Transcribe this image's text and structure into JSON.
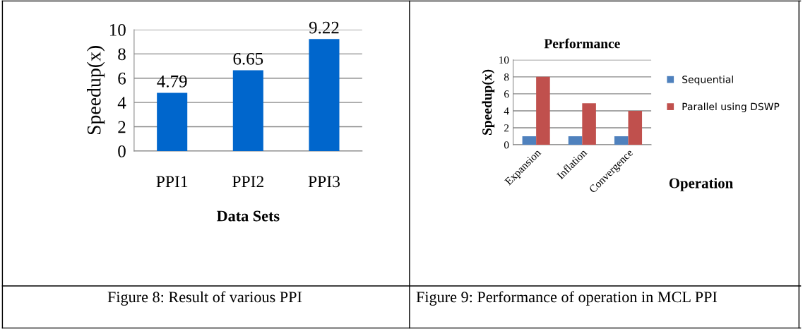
{
  "chart_data": [
    {
      "type": "bar",
      "categories": [
        "PPI1",
        "PPI2",
        "PPI3"
      ],
      "values": [
        4.79,
        6.65,
        9.22
      ],
      "color": "#0066cc",
      "data_labels": true,
      "ylabel": "Speedup(x)",
      "xlabel": "Data Sets",
      "ylim": [
        0,
        10
      ],
      "yticks": [
        0,
        2,
        4,
        6,
        8,
        10
      ],
      "grid": "y",
      "annotations": [
        "Figure 8: Result of various PPI"
      ]
    },
    {
      "type": "bar",
      "title": "Performance",
      "categories": [
        "Expansion",
        "Inflation",
        "Convergence"
      ],
      "xlabel": "Operation",
      "ylabel": "Speedup(x)",
      "ylim": [
        0,
        10
      ],
      "yticks": [
        0,
        2,
        4,
        6,
        8,
        10
      ],
      "grid": "y",
      "legend": "right",
      "series": [
        {
          "name": "Sequential",
          "color": "#4f81bd",
          "values": [
            1,
            1,
            1
          ]
        },
        {
          "name": "Parallel using DSWP",
          "color": "#c0504d",
          "values": [
            8,
            4.9,
            4
          ]
        }
      ],
      "annotations": [
        "Figure 9: Performance of operation in MCL PPI"
      ]
    }
  ]
}
